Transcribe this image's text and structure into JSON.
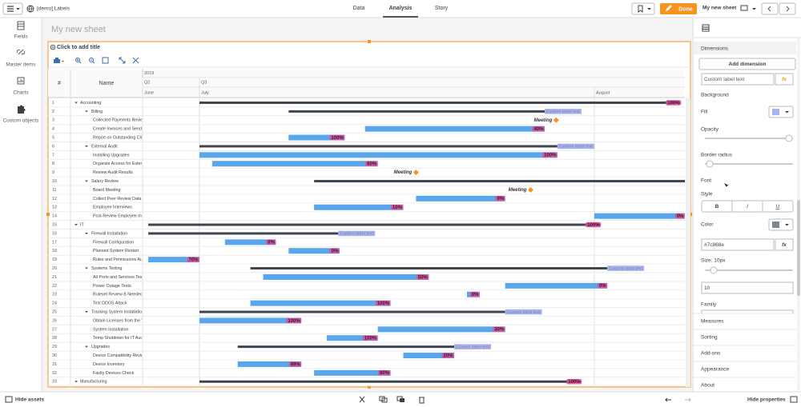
{
  "topbar": {
    "app_name": "[demo] Labels",
    "tabs": [
      "Data",
      "Analysis",
      "Story"
    ],
    "done": "Done",
    "sheet_name": "My new sheet"
  },
  "left_nav": [
    "Fields",
    "Master items",
    "Charts",
    "Custom objects"
  ],
  "sheet_title": "My new sheet",
  "chart_data": {
    "type": "gantt",
    "title": "Click to add title",
    "columns": [
      "#",
      "Name"
    ],
    "year": {
      "value": 0,
      "label": "2019"
    },
    "quarters": [
      {
        "value": 0,
        "label": "Q2"
      },
      {
        "value": 30,
        "label": "Q3"
      }
    ],
    "xlim": [
      0,
      68
    ],
    "xticks": [
      {
        "value": 0,
        "label": "June"
      },
      {
        "value": 30,
        "label": "July"
      },
      {
        "value": 61,
        "label": "August"
      }
    ],
    "colors": {
      "group": "#3d4650",
      "task": "#5aa6ec",
      "milestone": "#f7931e",
      "progress_label": "#d9549a"
    },
    "rows": [
      {
        "id": 1,
        "name": "Accounting",
        "level": 0,
        "type": "group",
        "start": 30,
        "end": 67.7,
        "label": "100%",
        "label_style": "progress"
      },
      {
        "id": 2,
        "name": "Billing",
        "level": 1,
        "type": "group",
        "start": 37,
        "end": 57.1,
        "label": "Custom label text",
        "label_style": "custom"
      },
      {
        "id": 3,
        "name": "Collected Payments Review",
        "level": 2,
        "type": "milestone",
        "at": 58,
        "label": "Meeting"
      },
      {
        "id": 4,
        "name": "Create Invoices and Send E",
        "level": 2,
        "type": "task",
        "start": 43,
        "end": 57.1,
        "label": "40%",
        "label_style": "progress"
      },
      {
        "id": 5,
        "name": "Report on Outstanding Cli",
        "level": 2,
        "type": "task",
        "start": 37,
        "end": 41.4,
        "label": "100%",
        "label_style": "progress"
      },
      {
        "id": 6,
        "name": "External Audit",
        "level": 1,
        "type": "group",
        "start": 30,
        "end": 58.1,
        "label": "Custom label text",
        "label_style": "custom"
      },
      {
        "id": 7,
        "name": "Installing Upgrades",
        "level": 2,
        "type": "task",
        "start": 30,
        "end": 58.1,
        "label": "100%",
        "label_style": "progress"
      },
      {
        "id": 8,
        "name": "Organize Access for Extern",
        "level": 2,
        "type": "task",
        "start": 31,
        "end": 44,
        "label": "60%",
        "label_style": "progress"
      },
      {
        "id": 9,
        "name": "Review Audit Results",
        "level": 2,
        "type": "milestone",
        "at": 47,
        "label": "Meeting"
      },
      {
        "id": 10,
        "name": "Salary Review",
        "level": 1,
        "type": "group",
        "start": 39,
        "end": 68
      },
      {
        "id": 11,
        "name": "Board Meeting",
        "level": 2,
        "type": "milestone",
        "at": 56,
        "label": "Meeting"
      },
      {
        "id": 12,
        "name": "Collect Peer Review Data",
        "level": 2,
        "type": "task",
        "start": 47,
        "end": 54,
        "label": "0%",
        "label_style": "progress"
      },
      {
        "id": 13,
        "name": "Employee Interviews",
        "level": 2,
        "type": "task",
        "start": 39,
        "end": 46,
        "label": "10%",
        "label_style": "progress"
      },
      {
        "id": 14,
        "name": "Post-Review Employee Inte",
        "level": 2,
        "type": "task",
        "start": 61,
        "end": 68,
        "label": "0%",
        "label_style": "progress"
      },
      {
        "id": 15,
        "name": "IT",
        "level": 0,
        "type": "group",
        "start": 3,
        "end": 61.5,
        "label": "100%",
        "label_style": "progress"
      },
      {
        "id": 16,
        "name": "Firewall Installation",
        "level": 1,
        "type": "group",
        "start": 3,
        "end": 40.9,
        "label": "Custom label text",
        "label_style": "custom"
      },
      {
        "id": 17,
        "name": "Firewall Configuration",
        "level": 2,
        "type": "task",
        "start": 32,
        "end": 36,
        "label": "0%",
        "label_style": "progress"
      },
      {
        "id": 18,
        "name": "Planned System Restart",
        "level": 2,
        "type": "task",
        "start": 37,
        "end": 41,
        "label": "0%",
        "label_style": "progress"
      },
      {
        "id": 19,
        "name": "Rules and Permissions Au",
        "level": 2,
        "type": "task",
        "start": 3,
        "end": 30,
        "label": "70%",
        "label_style": "progress"
      },
      {
        "id": 20,
        "name": "Systems Testing",
        "level": 1,
        "type": "group",
        "start": 34,
        "end": 62,
        "label": "Custom label text",
        "label_style": "custom"
      },
      {
        "id": 21,
        "name": "All Ports and Services Test",
        "level": 2,
        "type": "task",
        "start": 35,
        "end": 48,
        "label": "50%",
        "label_style": "progress"
      },
      {
        "id": 22,
        "name": "Power Outage Tests",
        "level": 2,
        "type": "task",
        "start": 54,
        "end": 62,
        "label": "0%",
        "label_style": "progress"
      },
      {
        "id": 23,
        "name": "Ruleset Review B Needed",
        "level": 2,
        "type": "task",
        "start": 51,
        "end": 52,
        "label": "0%",
        "label_style": "progress"
      },
      {
        "id": 24,
        "name": "Test DDOS Attack",
        "level": 2,
        "type": "task",
        "start": 34,
        "end": 45,
        "label": "100%",
        "label_style": "progress"
      },
      {
        "id": 25,
        "name": "Tracking System Installation",
        "level": 1,
        "type": "group",
        "start": 30,
        "end": 54,
        "label": "Custom label text",
        "label_style": "custom"
      },
      {
        "id": 26,
        "name": "Obtain Licenses from the V",
        "level": 2,
        "type": "task",
        "start": 30,
        "end": 38,
        "label": "100%",
        "label_style": "progress"
      },
      {
        "id": 27,
        "name": "System Installation",
        "level": 2,
        "type": "task",
        "start": 44,
        "end": 54,
        "label": "30%",
        "label_style": "progress"
      },
      {
        "id": 28,
        "name": "Temp Shutdown for IT Aud",
        "level": 2,
        "type": "task",
        "start": 40,
        "end": 44,
        "label": "100%",
        "label_style": "progress"
      },
      {
        "id": 29,
        "name": "Upgrades",
        "level": 1,
        "type": "group",
        "start": 33,
        "end": 50,
        "label": "Custom label text",
        "label_style": "custom"
      },
      {
        "id": 30,
        "name": "Device Compatibility Revie",
        "level": 2,
        "type": "task",
        "start": 46,
        "end": 50,
        "label": "20%",
        "label_style": "progress"
      },
      {
        "id": 31,
        "name": "Device Inventory",
        "level": 2,
        "type": "task",
        "start": 33,
        "end": 38,
        "label": "99%",
        "label_style": "progress"
      },
      {
        "id": 32,
        "name": "Faulty Devices Check",
        "level": 2,
        "type": "task",
        "start": 39,
        "end": 45,
        "label": "80%",
        "label_style": "progress"
      },
      {
        "id": 33,
        "name": "Manufacturing",
        "level": 0,
        "type": "group",
        "start": 30,
        "end": 60,
        "label": "100%",
        "label_style": "progress"
      }
    ]
  },
  "properties": {
    "dimensions": "Dimensions",
    "add_dimension": "Add dimension",
    "label_field": "Custom label text",
    "fx": "fx",
    "background": "Background",
    "fill": "Fill",
    "fill_color": "#a9b3f3",
    "opacity": "Opacity",
    "border_radius": "Border radius",
    "font": "Font",
    "style": "Style",
    "style_buttons": [
      "B",
      "I",
      "U"
    ],
    "color": "Color",
    "color_value": "#7c868e",
    "size": "Size: 10px",
    "size_value": "10",
    "family": "Family",
    "sections": [
      "Measures",
      "Sorting",
      "Add-ons",
      "Appearance",
      "About"
    ]
  },
  "bottombar": {
    "hide_assets": "Hide assets",
    "hide_properties": "Hide properties"
  }
}
